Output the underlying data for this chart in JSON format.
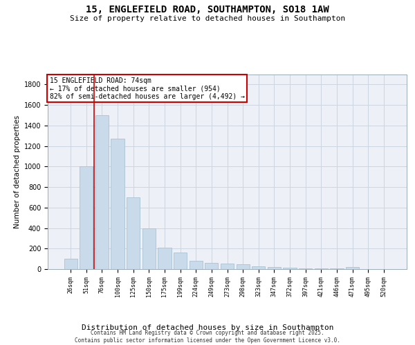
{
  "title_line1": "15, ENGLEFIELD ROAD, SOUTHAMPTON, SO18 1AW",
  "title_line2": "Size of property relative to detached houses in Southampton",
  "xlabel": "Distribution of detached houses by size in Southampton",
  "ylabel": "Number of detached properties",
  "categories": [
    "26sqm",
    "51sqm",
    "76sqm",
    "100sqm",
    "125sqm",
    "150sqm",
    "175sqm",
    "199sqm",
    "224sqm",
    "249sqm",
    "273sqm",
    "298sqm",
    "323sqm",
    "347sqm",
    "372sqm",
    "397sqm",
    "421sqm",
    "446sqm",
    "471sqm",
    "495sqm",
    "520sqm"
  ],
  "values": [
    100,
    1000,
    1500,
    1270,
    700,
    400,
    210,
    160,
    80,
    60,
    55,
    45,
    30,
    20,
    15,
    10,
    8,
    5,
    20,
    0,
    0
  ],
  "bar_color": "#c9daea",
  "bar_edge_color": "#a8c2d4",
  "grid_color": "#ccd6e0",
  "plot_bg_color": "#edf1f7",
  "vline_color": "#cc0000",
  "vline_x": 1.5,
  "annotation_line1": "15 ENGLEFIELD ROAD: 74sqm",
  "annotation_line2": "← 17% of detached houses are smaller (954)",
  "annotation_line3": "82% of semi-detached houses are larger (4,492) →",
  "ann_box_facecolor": "#ffffff",
  "ann_box_edgecolor": "#cc0000",
  "ylim": [
    0,
    1900
  ],
  "yticks": [
    0,
    200,
    400,
    600,
    800,
    1000,
    1200,
    1400,
    1600,
    1800
  ],
  "footer": "Contains HM Land Registry data © Crown copyright and database right 2025.\nContains public sector information licensed under the Open Government Licence v3.0.",
  "title1_fontsize": 10,
  "title2_fontsize": 8,
  "ylabel_fontsize": 7.5,
  "xlabel_fontsize": 8,
  "tick_fontsize": 6,
  "ytick_fontsize": 7,
  "ann_fontsize": 7,
  "footer_fontsize": 5.5
}
